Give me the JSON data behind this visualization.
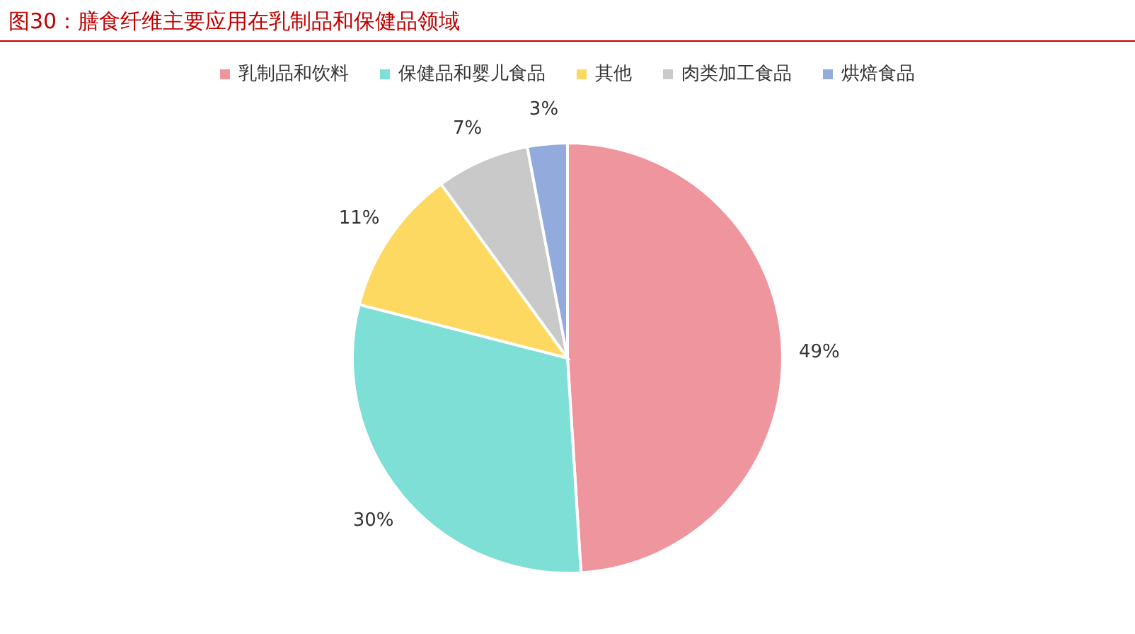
{
  "chart_data": {
    "type": "pie",
    "title": "图30：膳食纤维主要应用在乳制品和保健品领域",
    "categories": [
      "乳制品和饮料",
      "保健品和婴儿食品",
      "其他",
      "肉类加工食品",
      "烘焙食品"
    ],
    "values": [
      49,
      30,
      11,
      7,
      3
    ],
    "colors": [
      "#ef959d",
      "#7edfd6",
      "#fdd962",
      "#c9c9c9",
      "#92aadc"
    ],
    "value_labels": [
      "49%",
      "30%",
      "11%",
      "7%",
      "3%"
    ],
    "legend": "top"
  }
}
